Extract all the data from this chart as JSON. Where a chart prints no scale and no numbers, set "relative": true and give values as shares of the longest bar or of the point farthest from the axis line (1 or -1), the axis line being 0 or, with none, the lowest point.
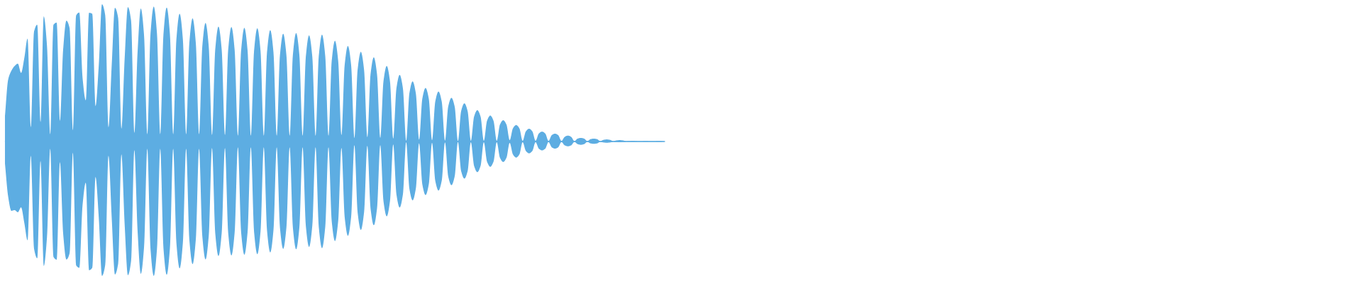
{
  "chart_data": {
    "type": "area",
    "relative": true,
    "categories": [
      null,
      null,
      null,
      null,
      null,
      null,
      null,
      null,
      null,
      null,
      null,
      null,
      null,
      null,
      null,
      null,
      null,
      null,
      null,
      null,
      null,
      null,
      null,
      null,
      null,
      null,
      null,
      null,
      null,
      null,
      null,
      null,
      null,
      null,
      null,
      null,
      null,
      null,
      null,
      null,
      null,
      null,
      null,
      null,
      null,
      null,
      null,
      null,
      null,
      null,
      null,
      null,
      null,
      null,
      null,
      null,
      null,
      null,
      null,
      null,
      null,
      null,
      null,
      null,
      null,
      null,
      null,
      null,
      null,
      null,
      null,
      null,
      null,
      null,
      null,
      null,
      null,
      null,
      null,
      null,
      null,
      null,
      null,
      null,
      null,
      null,
      null,
      null,
      null,
      null,
      null,
      null,
      null,
      null,
      null,
      null,
      null,
      null,
      null,
      null,
      null,
      null,
      null,
      null,
      null,
      null,
      null,
      null,
      null,
      null,
      null,
      null,
      null,
      null,
      null,
      null,
      null,
      null,
      null,
      null,
      null,
      null,
      null,
      null,
      null,
      null,
      null,
      null,
      null,
      null,
      null,
      null,
      null,
      null,
      null,
      null,
      null,
      null,
      null,
      null,
      null,
      null,
      null,
      null,
      null,
      null,
      null,
      null,
      null,
      null,
      null,
      null,
      null,
      null,
      null,
      null,
      null,
      null,
      null,
      null,
      null,
      null,
      null,
      null,
      null,
      null,
      null,
      null,
      null,
      null,
      null,
      null,
      null,
      null,
      null,
      null,
      null,
      null,
      null,
      null,
      null,
      null,
      null,
      null,
      null,
      null,
      null,
      null,
      null,
      null,
      null,
      null,
      null,
      null,
      null,
      null,
      null,
      null,
      null,
      null,
      null,
      null,
      null,
      null,
      null
    ],
    "series": [
      {
        "color": "#5dade2",
        "values": [
          0.18,
          0.45,
          0.515,
          0.55,
          0.567,
          0.5,
          0.608,
          0.75,
          0.103,
          0.8,
          0.851,
          0.14,
          0.912,
          0.7,
          0.052,
          0.85,
          0.866,
          0.15,
          0.67,
          0.88,
          0.825,
          0.08,
          0.918,
          0.94,
          0.464,
          0.3,
          0.938,
          0.93,
          0.258,
          0.55,
          1.0,
          0.92,
          0.103,
          0.55,
          0.974,
          0.9,
          0.093,
          0.6,
          0.979,
          0.88,
          0.062,
          0.65,
          0.969,
          0.775,
          0.052,
          0.786,
          0.983,
          0.786,
          0.052,
          0.781,
          0.976,
          0.781,
          0.052,
          0.745,
          0.931,
          0.745,
          0.052,
          0.718,
          0.897,
          0.718,
          0.052,
          0.691,
          0.864,
          0.691,
          0.046,
          0.67,
          0.837,
          0.67,
          0.046,
          0.667,
          0.834,
          0.667,
          0.041,
          0.662,
          0.828,
          0.662,
          0.041,
          0.66,
          0.825,
          0.66,
          0.041,
          0.649,
          0.811,
          0.649,
          0.041,
          0.628,
          0.785,
          0.628,
          0.041,
          0.632,
          0.79,
          0.632,
          0.041,
          0.618,
          0.773,
          0.618,
          0.041,
          0.622,
          0.778,
          0.622,
          0.041,
          0.587,
          0.734,
          0.587,
          0.046,
          0.557,
          0.696,
          0.557,
          0.026,
          0.522,
          0.653,
          0.522,
          0.031,
          0.49,
          0.613,
          0.49,
          0.026,
          0.44,
          0.55,
          0.44,
          0.021,
          0.388,
          0.485,
          0.388,
          0.005,
          0.35,
          0.438,
          0.35,
          0.013,
          0.312,
          0.39,
          0.312,
          0.009,
          0.291,
          0.364,
          0.291,
          0.006,
          0.254,
          0.318,
          0.254,
          0.003,
          0.222,
          0.278,
          0.222,
          0.005,
          0.182,
          0.228,
          0.182,
          0.005,
          0.151,
          0.189,
          0.151,
          0.005,
          0.124,
          0.155,
          0.124,
          0.01,
          0.096,
          0.12,
          0.096,
          0.005,
          0.074,
          0.093,
          0.074,
          0.005,
          0.058,
          0.072,
          0.058,
          0.004,
          0.046,
          0.057,
          0.046,
          0.004,
          0.034,
          0.043,
          0.034,
          0.003,
          0.021,
          0.026,
          0.021,
          0.003,
          0.017,
          0.021,
          0.017,
          0.003,
          0.012,
          0.015,
          0.012,
          0.003,
          0.008,
          0.01,
          0.008,
          0.003,
          0.004,
          0.005,
          0.004,
          0.002,
          0.003,
          0.004,
          0.003,
          0.002,
          0.003,
          0.004,
          0.003,
          0
        ]
      },
      {
        "color": "#5dade2",
        "values": [
          -0.155,
          -0.4,
          -0.505,
          -0.5,
          -0.515,
          -0.48,
          -0.593,
          -0.72,
          -0.103,
          -0.78,
          -0.851,
          -0.14,
          -0.907,
          -0.7,
          -0.052,
          -0.84,
          -0.861,
          -0.15,
          -0.67,
          -0.86,
          -0.814,
          -0.08,
          -0.902,
          -0.92,
          -0.464,
          -0.3,
          -0.938,
          -0.92,
          -0.258,
          -0.55,
          -0.979,
          -0.9,
          -0.103,
          -0.55,
          -0.969,
          -0.89,
          -0.093,
          -0.6,
          -0.974,
          -0.87,
          -0.062,
          -0.65,
          -0.964,
          -0.771,
          -0.052,
          -0.783,
          -0.979,
          -0.783,
          -0.052,
          -0.777,
          -0.971,
          -0.777,
          -0.052,
          -0.739,
          -0.924,
          -0.739,
          -0.052,
          -0.714,
          -0.893,
          -0.714,
          -0.052,
          -0.687,
          -0.859,
          -0.687,
          -0.046,
          -0.667,
          -0.834,
          -0.667,
          -0.046,
          -0.664,
          -0.83,
          -0.664,
          -0.041,
          -0.66,
          -0.825,
          -0.66,
          -0.041,
          -0.657,
          -0.821,
          -0.657,
          -0.041,
          -0.646,
          -0.808,
          -0.646,
          -0.041,
          -0.626,
          -0.782,
          -0.626,
          -0.041,
          -0.628,
          -0.785,
          -0.628,
          -0.041,
          -0.614,
          -0.768,
          -0.614,
          -0.041,
          -0.622,
          -0.777,
          -0.622,
          -0.041,
          -0.58,
          -0.725,
          -0.58,
          -0.046,
          -0.55,
          -0.687,
          -0.55,
          -0.026,
          -0.515,
          -0.644,
          -0.515,
          -0.031,
          -0.488,
          -0.61,
          -0.488,
          -0.026,
          -0.436,
          -0.545,
          -0.436,
          -0.021,
          -0.385,
          -0.481,
          -0.385,
          -0.005,
          -0.343,
          -0.429,
          -0.343,
          -0.013,
          -0.312,
          -0.39,
          -0.312,
          -0.009,
          -0.286,
          -0.357,
          -0.286,
          -0.006,
          -0.254,
          -0.318,
          -0.254,
          -0.003,
          -0.216,
          -0.27,
          -0.216,
          -0.005,
          -0.178,
          -0.223,
          -0.178,
          -0.005,
          -0.147,
          -0.184,
          -0.147,
          -0.005,
          -0.119,
          -0.149,
          -0.119,
          -0.01,
          -0.094,
          -0.117,
          -0.094,
          -0.005,
          -0.069,
          -0.086,
          -0.069,
          -0.005,
          -0.052,
          -0.065,
          -0.052,
          -0.004,
          -0.042,
          -0.052,
          -0.042,
          -0.004,
          -0.028,
          -0.035,
          -0.028,
          -0.003,
          -0.019,
          -0.024,
          -0.019,
          -0.003,
          -0.014,
          -0.017,
          -0.014,
          -0.003,
          -0.007,
          -0.009,
          -0.007,
          -0.003,
          -0.004,
          -0.005,
          -0.004,
          -0.003,
          -0.002,
          -0.002,
          -0.002,
          -0.002,
          -0.002,
          -0.002,
          -0.002,
          -0.002,
          -0.002,
          -0.002,
          -0.002,
          0
        ]
      }
    ],
    "ref_lines": [
      {
        "axis": "y",
        "value": 0,
        "color": "#5dade2"
      }
    ]
  }
}
